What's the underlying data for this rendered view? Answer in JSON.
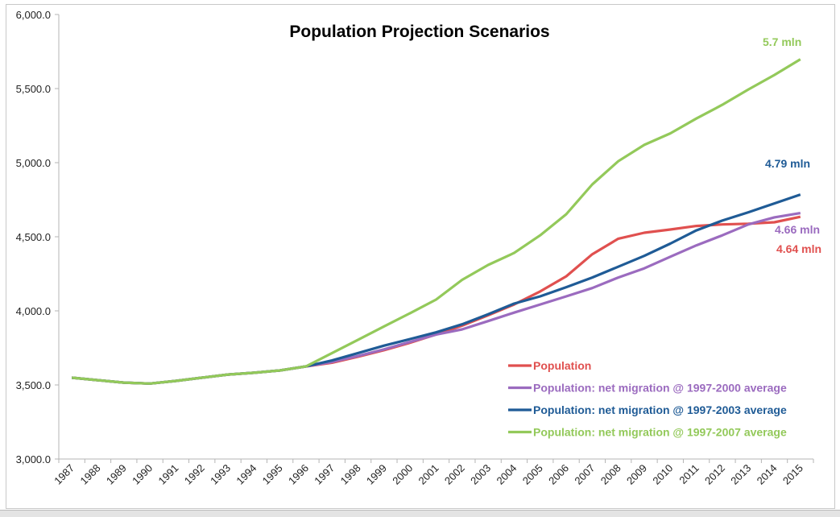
{
  "chart_data": {
    "type": "line",
    "title": "Population Projection Scenarios",
    "xlabel": "",
    "ylabel": "",
    "ylim": [
      3000,
      6000
    ],
    "yticks": [
      "3,000.0",
      "3,500.0",
      "4,000.0",
      "4,500.0",
      "5,000.0",
      "5,500.0",
      "6,000.0"
    ],
    "ytick_values": [
      3000,
      3500,
      4000,
      4500,
      5000,
      5500,
      6000
    ],
    "grid": false,
    "legend_placement": "bottom-right",
    "categories": [
      "1987",
      "1988",
      "1989",
      "1990",
      "1991",
      "1992",
      "1993",
      "1994",
      "1995",
      "1996",
      "1997",
      "1998",
      "1999",
      "2000",
      "2001",
      "2002",
      "2003",
      "2004",
      "2005",
      "2006",
      "2007",
      "2008",
      "2009",
      "2010",
      "2011",
      "2012",
      "2013",
      "2014",
      "2015"
    ],
    "series": [
      {
        "name": "Population",
        "color": "#e0504f",
        "end_label": "4.64 mln",
        "values": [
          3549,
          3532,
          3516,
          3509,
          3527,
          3549,
          3570,
          3582,
          3598,
          3625,
          3650,
          3690,
          3735,
          3785,
          3840,
          3900,
          3970,
          4043,
          4131,
          4233,
          4382,
          4487,
          4527,
          4549,
          4573,
          4583,
          4588,
          4598,
          4635
        ]
      },
      {
        "name": "Population: net migration @ 1997-2000 average",
        "color": "#9b6bbf",
        "end_label": "4.66 mln",
        "values": [
          3549,
          3532,
          3516,
          3509,
          3527,
          3549,
          3570,
          3582,
          3598,
          3625,
          3655,
          3695,
          3740,
          3790,
          3840,
          3875,
          3931,
          3988,
          4043,
          4098,
          4154,
          4225,
          4287,
          4365,
          4442,
          4510,
          4583,
          4631,
          4660
        ]
      },
      {
        "name": "Population: net migration @ 1997-2003 average",
        "color": "#1f5b96",
        "end_label": "4.79 mln",
        "values": [
          3549,
          3532,
          3516,
          3509,
          3527,
          3549,
          3570,
          3582,
          3598,
          3625,
          3665,
          3715,
          3765,
          3810,
          3855,
          3909,
          3977,
          4049,
          4098,
          4160,
          4225,
          4298,
          4371,
          4454,
          4543,
          4609,
          4665,
          4725,
          4785
        ]
      },
      {
        "name": "Population: net migration @ 1997-2007 average",
        "color": "#93c95a",
        "end_label": "5.7 mln",
        "values": [
          3549,
          3532,
          3516,
          3509,
          3527,
          3549,
          3570,
          3582,
          3598,
          3625,
          3715,
          3805,
          3895,
          3984,
          4076,
          4209,
          4310,
          4391,
          4510,
          4652,
          4853,
          5010,
          5120,
          5198,
          5298,
          5391,
          5494,
          5592,
          5698
        ]
      }
    ]
  }
}
